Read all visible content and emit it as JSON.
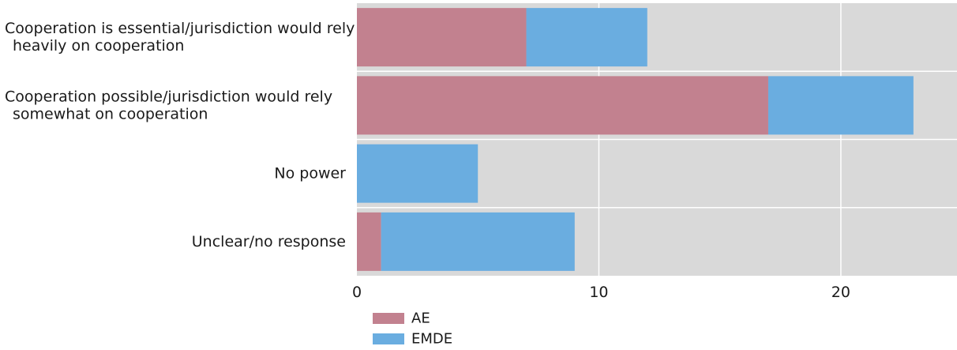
{
  "chart_data": {
    "type": "bar",
    "orientation": "horizontal",
    "stacked": true,
    "categories": [
      [
        "Cooperation is essential/jurisdiction would rely",
        "heavily on cooperation"
      ],
      [
        "Cooperation possible/jurisdiction would rely",
        "somewhat on cooperation"
      ],
      [
        "No power"
      ],
      [
        "Unclear/no response"
      ]
    ],
    "series": [
      {
        "name": "AE",
        "values": [
          7,
          17,
          0,
          1
        ]
      },
      {
        "name": "EMDE",
        "values": [
          5,
          6,
          5,
          8
        ]
      }
    ],
    "xlim": [
      0,
      24.8
    ],
    "xticks": [
      0,
      10,
      20
    ],
    "xtick_labels": [
      "0",
      "10",
      "20"
    ],
    "grid": true,
    "legend_position": "bottom-left",
    "colors": {
      "AE": "#c2818f",
      "EMDE": "#6aade0",
      "plot_background": "#d9d9d9",
      "gridline": "#ffffff"
    }
  }
}
